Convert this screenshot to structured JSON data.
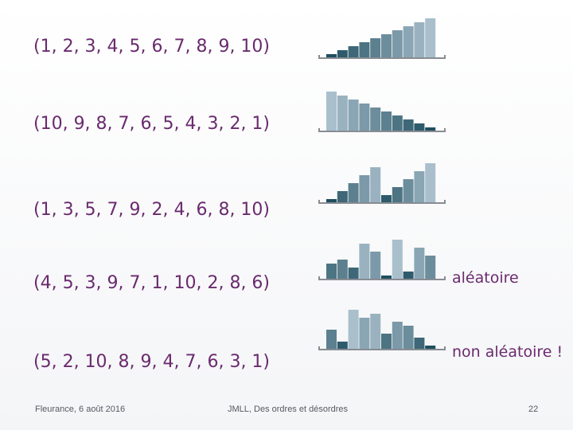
{
  "chart_data": [
    {
      "type": "bar",
      "label": "(1, 2, 3, 4, 5, 6, 7, 8, 9, 10)",
      "values": [
        1,
        2,
        3,
        4,
        5,
        6,
        7,
        8,
        9,
        10
      ],
      "annotation": ""
    },
    {
      "type": "bar",
      "label": "(10, 9, 8, 7, 6, 5, 4, 3, 2, 1)",
      "values": [
        10,
        9,
        8,
        7,
        6,
        5,
        4,
        3,
        2,
        1
      ],
      "annotation": ""
    },
    {
      "type": "bar",
      "label": "(1, 3, 5, 7, 9, 2, 4, 6, 8, 10)",
      "values": [
        1,
        3,
        5,
        7,
        9,
        2,
        4,
        6,
        8,
        10
      ],
      "annotation": ""
    },
    {
      "type": "bar",
      "label": "(4, 5, 3, 9, 7, 1, 10, 2, 8, 6)",
      "values": [
        4,
        5,
        3,
        9,
        7,
        1,
        10,
        2,
        8,
        6
      ],
      "annotation": "aléatoire"
    },
    {
      "type": "bar",
      "label": "(5, 2, 10, 8, 9, 4, 7, 6, 3, 1)",
      "values": [
        5,
        2,
        10,
        8,
        9,
        4,
        7,
        6,
        3,
        1
      ],
      "annotation": "non aléatoire !"
    }
  ],
  "colors": {
    "text": "#6a2a6e",
    "axis": "#888c92",
    "bar_low": "#1f4e5f",
    "bar_high": "#a9bfcc"
  },
  "footer": {
    "left": "Fleurance, 6 août 2016",
    "center": "JMLL, Des ordres et désordres",
    "page": "22"
  }
}
